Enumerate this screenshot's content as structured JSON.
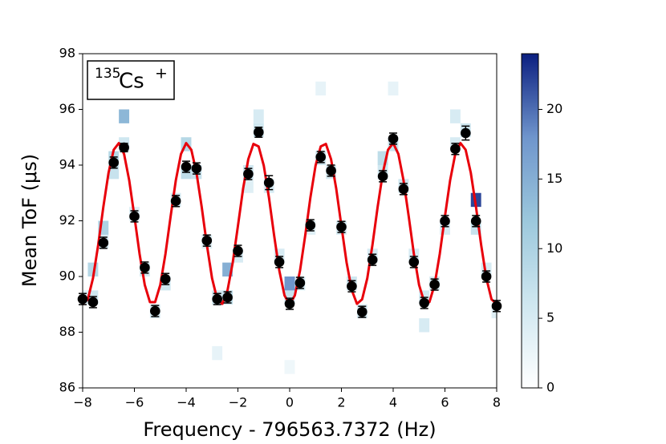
{
  "chart_data": {
    "type": "heatmap-scatter-fit",
    "xlabel": "Frequency - 796563.7372 (Hz)",
    "ylabel": "Mean ToF (μs)",
    "annotation": {
      "mass": "135",
      "element": "Cs",
      "charge": "+"
    },
    "xlim": [
      -8,
      8
    ],
    "ylim": [
      86,
      98
    ],
    "xticks": [
      {
        "value": -8,
        "label": "−8"
      },
      {
        "value": -6,
        "label": "−6"
      },
      {
        "value": -4,
        "label": "−4"
      },
      {
        "value": -2,
        "label": "−2"
      },
      0,
      2,
      4,
      6,
      8
    ],
    "yticks": [
      86,
      88,
      90,
      92,
      94,
      96,
      98
    ],
    "points": {
      "color": "#000000",
      "x": [
        -8,
        -7.6,
        -7.2,
        -6.8,
        -6.4,
        -6.0,
        -5.6,
        -5.2,
        -4.8,
        -4.4,
        -4.0,
        -3.6,
        -3.2,
        -2.8,
        -2.4,
        -2.0,
        -1.6,
        -1.2,
        -0.8,
        -0.4,
        0,
        0.4,
        0.8,
        1.2,
        1.6,
        2.0,
        2.4,
        2.8,
        3.2,
        3.6,
        4.0,
        4.4,
        4.8,
        5.2,
        5.6,
        6.0,
        6.4,
        6.8,
        7.2,
        7.6,
        8.0
      ],
      "values": [
        89.19,
        89.08,
        91.21,
        94.09,
        94.63,
        92.16,
        90.32,
        88.76,
        89.91,
        92.71,
        93.94,
        93.88,
        91.29,
        89.19,
        89.25,
        90.92,
        93.68,
        95.18,
        93.37,
        90.52,
        89.02,
        89.77,
        91.84,
        94.29,
        93.8,
        91.78,
        89.65,
        88.73,
        90.6,
        93.6,
        94.95,
        93.14,
        90.52,
        89.05,
        89.71,
        91.99,
        94.58,
        95.15,
        91.99,
        90.0,
        88.94
      ],
      "errors": [
        0.2,
        0.2,
        0.2,
        0.2,
        0.15,
        0.2,
        0.2,
        0.2,
        0.2,
        0.2,
        0.2,
        0.2,
        0.2,
        0.2,
        0.2,
        0.2,
        0.2,
        0.18,
        0.25,
        0.2,
        0.2,
        0.2,
        0.2,
        0.2,
        0.2,
        0.2,
        0.2,
        0.2,
        0.2,
        0.2,
        0.2,
        0.2,
        0.2,
        0.2,
        0.2,
        0.2,
        0.2,
        0.25,
        0.2,
        0.2,
        0.2
      ]
    },
    "fit": {
      "color": "#e8000b",
      "x": [
        -8.0,
        -7.8,
        -7.6,
        -7.4,
        -7.2,
        -7.0,
        -6.8,
        -6.6,
        -6.4,
        -6.2,
        -6.0,
        -5.8,
        -5.6,
        -5.4,
        -5.2,
        -5.0,
        -4.8,
        -4.6,
        -4.4,
        -4.2,
        -4.0,
        -3.8,
        -3.6,
        -3.4,
        -3.2,
        -3.0,
        -2.8,
        -2.6,
        -2.4,
        -2.2,
        -2.0,
        -1.8,
        -1.6,
        -1.4,
        -1.2,
        -1.0,
        -0.8,
        -0.6,
        -0.4,
        -0.2,
        0,
        0.2,
        0.4,
        0.6,
        0.8,
        1.0,
        1.2,
        1.4,
        1.6,
        1.8,
        2.0,
        2.2,
        2.4,
        2.6,
        2.8,
        3.0,
        3.2,
        3.4,
        3.6,
        3.8,
        4.0,
        4.2,
        4.4,
        4.6,
        4.8,
        5.0,
        5.2,
        5.4,
        5.6,
        5.8,
        6.0,
        6.2,
        6.4,
        6.6,
        6.8,
        7.0,
        7.2,
        7.4,
        7.6,
        7.8,
        8.0
      ],
      "values": [
        89.02,
        89.18,
        89.94,
        91.13,
        92.5,
        93.72,
        94.55,
        94.79,
        94.4,
        93.45,
        92.16,
        90.81,
        89.7,
        89.08,
        89.08,
        89.7,
        90.81,
        92.16,
        93.45,
        94.4,
        94.79,
        94.55,
        93.72,
        92.5,
        91.14,
        89.94,
        89.18,
        89.02,
        89.51,
        90.5,
        91.81,
        93.15,
        94.21,
        94.76,
        94.67,
        93.98,
        92.83,
        91.47,
        90.21,
        89.32,
        89.0,
        89.32,
        90.21,
        91.47,
        92.83,
        93.98,
        94.67,
        94.76,
        94.21,
        93.15,
        91.81,
        90.5,
        89.51,
        89.02,
        89.18,
        89.94,
        91.14,
        92.5,
        93.72,
        94.55,
        94.79,
        94.4,
        93.45,
        92.16,
        90.81,
        89.7,
        89.08,
        89.08,
        89.7,
        90.81,
        92.16,
        93.45,
        94.4,
        94.79,
        94.55,
        93.72,
        92.5,
        91.13,
        89.94,
        89.18,
        89.02
      ]
    },
    "heatmap": {
      "x_bin_width": 0.4,
      "y_bin_height": 0.5,
      "cells": [
        [
          -8,
          89.0,
          4
        ],
        [
          -7.6,
          89.0,
          6
        ],
        [
          -7.2,
          91.0,
          5
        ],
        [
          -6.8,
          94.0,
          9
        ],
        [
          -6.4,
          94.5,
          6
        ],
        [
          -6.0,
          92.0,
          4
        ],
        [
          -5.6,
          90.0,
          5
        ],
        [
          -5.2,
          88.5,
          5
        ],
        [
          -4.8,
          89.5,
          6
        ],
        [
          -4.4,
          92.5,
          5
        ],
        [
          -4.0,
          93.5,
          8
        ],
        [
          -3.6,
          93.5,
          7
        ],
        [
          -3.2,
          91.0,
          4
        ],
        [
          -2.8,
          89.0,
          6
        ],
        [
          -2.4,
          89.0,
          8
        ],
        [
          -2.0,
          90.5,
          5
        ],
        [
          -1.6,
          93.5,
          6
        ],
        [
          -1.2,
          95.0,
          6
        ],
        [
          -0.8,
          93.0,
          5
        ],
        [
          -0.4,
          90.5,
          5
        ],
        [
          0,
          89.0,
          7
        ],
        [
          0.4,
          89.5,
          5
        ],
        [
          0.8,
          91.5,
          4
        ],
        [
          1.2,
          94.0,
          6
        ],
        [
          1.6,
          93.5,
          5
        ],
        [
          2.0,
          91.5,
          5
        ],
        [
          2.4,
          89.5,
          6
        ],
        [
          2.8,
          88.5,
          5
        ],
        [
          3.2,
          90.5,
          5
        ],
        [
          3.6,
          93.5,
          6
        ],
        [
          4.0,
          94.5,
          7
        ],
        [
          4.4,
          93.0,
          6
        ],
        [
          4.8,
          90.5,
          5
        ],
        [
          5.2,
          89.0,
          6
        ],
        [
          5.6,
          89.5,
          5
        ],
        [
          6.0,
          91.5,
          5
        ],
        [
          6.4,
          94.5,
          5
        ],
        [
          6.8,
          95.0,
          6
        ],
        [
          7.2,
          91.5,
          7
        ],
        [
          7.6,
          90.0,
          5
        ],
        [
          8.0,
          88.5,
          4
        ],
        [
          -6.4,
          95.5,
          14
        ],
        [
          -7.2,
          91.5,
          10
        ],
        [
          -7.6,
          90.0,
          9
        ],
        [
          7.2,
          92.5,
          22
        ],
        [
          0,
          89.5,
          18
        ],
        [
          -2.4,
          90.0,
          15
        ],
        [
          -4.0,
          94.5,
          9
        ],
        [
          -1.2,
          95.5,
          5
        ],
        [
          1.2,
          96.5,
          3
        ],
        [
          4.0,
          96.5,
          3
        ],
        [
          6.4,
          95.5,
          5
        ],
        [
          -6.8,
          93.5,
          7
        ],
        [
          3.6,
          94.0,
          8
        ],
        [
          -1.6,
          93.0,
          4
        ],
        [
          5.2,
          88.0,
          5
        ],
        [
          -2.8,
          87.0,
          3
        ],
        [
          0,
          86.5,
          2
        ]
      ]
    },
    "colormap": [
      "#ffffff",
      "#cfe7f0",
      "#9cc8dc",
      "#6f95cc",
      "#0b1f80"
    ],
    "clim": [
      0,
      24
    ],
    "cticks": [
      0,
      5,
      10,
      15,
      20
    ]
  }
}
